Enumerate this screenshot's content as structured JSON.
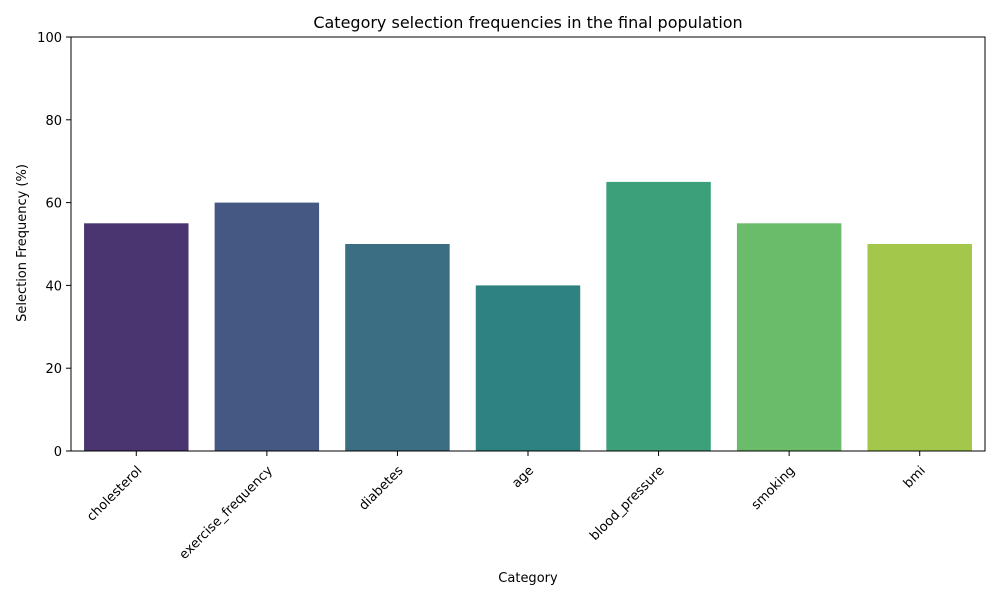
{
  "chart_data": {
    "type": "bar",
    "title": "Category selection frequencies in the final population",
    "xlabel": "Category",
    "ylabel": "Selection Frequency (%)",
    "categories": [
      "cholesterol",
      "exercise_frequency",
      "diabetes",
      "age",
      "blood_pressure",
      "smoking",
      "bmi"
    ],
    "values": [
      55,
      60,
      50,
      40,
      65,
      55,
      50
    ],
    "colors": [
      "#4a3570",
      "#455783",
      "#3b6e82",
      "#2e8280",
      "#3ca17b",
      "#6bbc6a",
      "#a2c74a"
    ],
    "ylim": [
      0,
      100
    ],
    "yticks": [
      0,
      20,
      40,
      60,
      80,
      100
    ],
    "grid": false,
    "legend": "none"
  }
}
